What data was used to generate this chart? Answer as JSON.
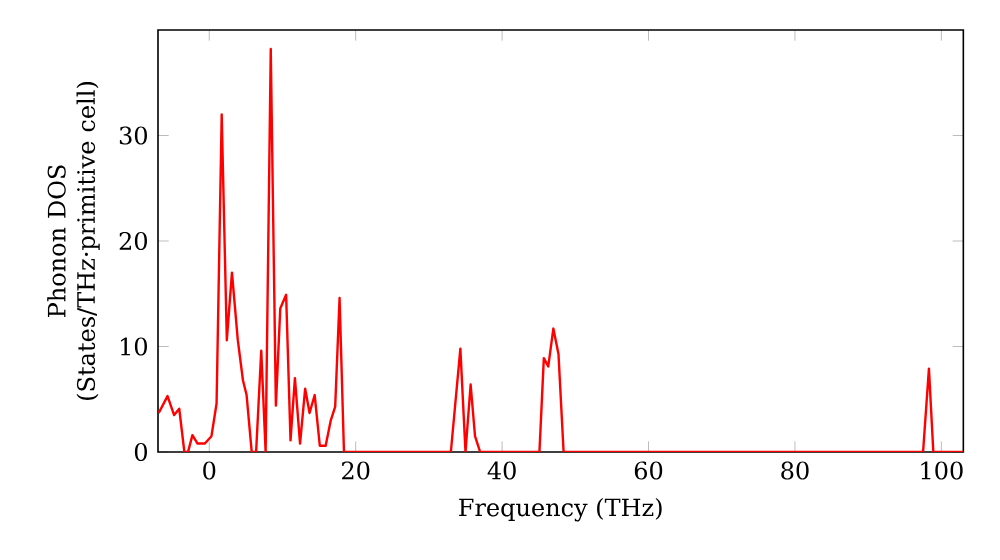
{
  "chart_data": {
    "type": "line",
    "xlabel": "Frequency (THz)",
    "ylabel": "Phonon DOS (States/THz·primitive cell)",
    "xlim": [
      -7,
      103
    ],
    "ylim": [
      0,
      40
    ],
    "xticks": [
      0,
      20,
      40,
      60,
      80,
      100
    ],
    "yticks": [
      0,
      10,
      20,
      30
    ],
    "marker": "none",
    "line_style": "solid",
    "series": [
      {
        "color": "#ff0000",
        "x": [
          -6.9,
          -5.7,
          -4.8,
          -4.1,
          -3.4,
          -2.9,
          -2.3,
          -1.6,
          -0.6,
          0.3,
          1.0,
          1.7,
          2.4,
          3.1,
          3.9,
          4.6,
          5.1,
          5.8,
          6.4,
          7.1,
          7.7,
          8.4,
          9.1,
          9.7,
          10.5,
          11.1,
          11.7,
          12.4,
          13.1,
          13.7,
          14.4,
          15.1,
          15.9,
          16.6,
          17.2,
          17.8,
          18.4,
          33.0,
          34.3,
          35.0,
          35.7,
          36.3,
          37.0,
          45.1,
          45.7,
          46.3,
          47.0,
          47.7,
          48.4,
          97.5,
          98.3,
          98.9,
          103
        ],
        "values": [
          3.7,
          5.3,
          3.5,
          4.1,
          0,
          0,
          1.6,
          0.8,
          0.8,
          1.5,
          4.6,
          32,
          10.6,
          17,
          10.6,
          6.8,
          5.4,
          0,
          0,
          9.6,
          0,
          38.2,
          4.4,
          13.6,
          14.9,
          1.1,
          7.0,
          0.8,
          6.0,
          3.7,
          5.4,
          0.6,
          0.6,
          3.0,
          4.3,
          14.6,
          0,
          0,
          9.8,
          0,
          6.4,
          1.5,
          0,
          0,
          8.9,
          8.1,
          11.7,
          9.3,
          0,
          0,
          7.9,
          0,
          0
        ]
      }
    ]
  }
}
